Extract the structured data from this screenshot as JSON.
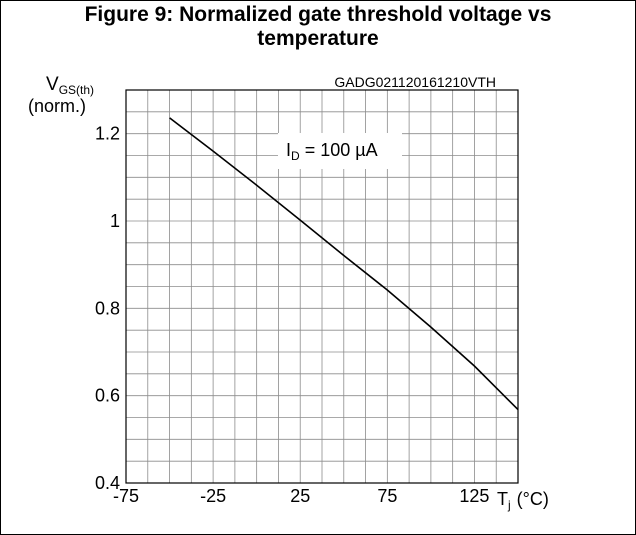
{
  "figure": {
    "title_line1": "Figure 9: Normalized gate threshold voltage vs",
    "title_line2": "temperature"
  },
  "chart_data": {
    "type": "line",
    "title": "Figure 9: Normalized gate threshold voltage vs temperature",
    "code": "GADG021120161210VTH",
    "ylabel": {
      "main": "V",
      "sub": "GS(th)",
      "unit": "(norm.)"
    },
    "xlabel": {
      "main": "T",
      "sub": "j",
      "unit": "(°C)"
    },
    "annotation": {
      "main": "I",
      "sub": "D",
      "rest": " = 100 µA"
    },
    "xlim": [
      -75,
      150
    ],
    "ylim": [
      0.4,
      1.3
    ],
    "x_ticks": [
      -75,
      -25,
      25,
      75,
      125
    ],
    "y_ticks": [
      0.4,
      0.6,
      0.8,
      1,
      1.2
    ],
    "x_tick_labels": [
      "-75",
      "-25",
      "25",
      "75",
      "125"
    ],
    "y_tick_labels": [
      "0.4",
      "0.6",
      "0.8",
      "1",
      "1.2"
    ],
    "grid": true,
    "series": [
      {
        "x": [
          -50,
          -25,
          0,
          25,
          50,
          75,
          100,
          125,
          150
        ],
        "y": [
          1.236,
          1.16,
          1.082,
          1.002,
          0.921,
          0.842,
          0.757,
          0.668,
          0.568
        ]
      }
    ]
  }
}
